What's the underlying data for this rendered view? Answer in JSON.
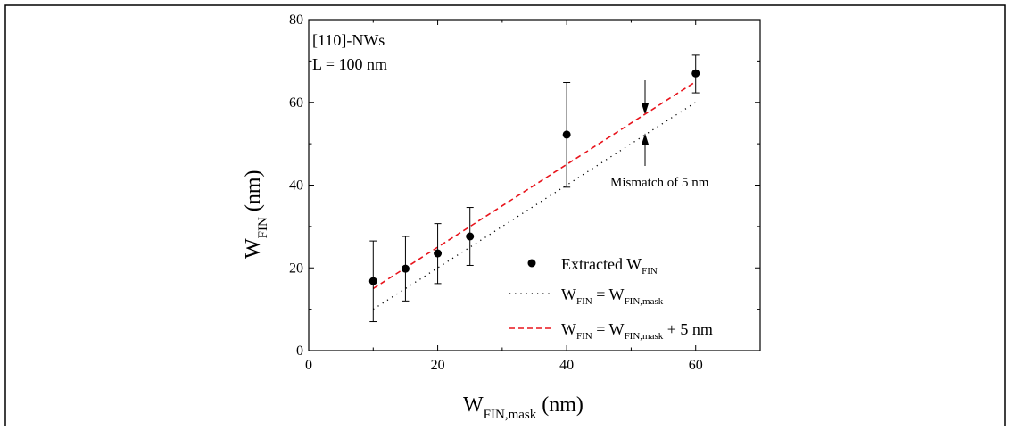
{
  "chart_data": {
    "type": "scatter",
    "xlim": [
      0,
      70
    ],
    "ylim": [
      0,
      80
    ],
    "x_ticks": [
      "0",
      "20",
      "40",
      "60"
    ],
    "y_ticks": [
      "0",
      "20",
      "40",
      "60",
      "80"
    ],
    "xlabel": {
      "main": "W",
      "sub": "FIN,mask",
      "unit": " (nm)"
    },
    "ylabel": {
      "main": "W",
      "sub": "FIN",
      "unit": " (nm)"
    },
    "annotations": {
      "line1": "[110]-NWs",
      "line2": "L = 100 nm",
      "mismatch": "Mismatch of 5 nm"
    },
    "legend_position": "lower-right",
    "grid": false,
    "series": [
      {
        "name": "Extracted W_FIN",
        "kind": "points-with-errorbars",
        "color": "#000000",
        "x": [
          10,
          15,
          20,
          25,
          40,
          60
        ],
        "y": [
          16.8,
          19.8,
          23.5,
          27.6,
          52.2,
          67.0
        ],
        "y_err_low": [
          7.0,
          12.0,
          16.2,
          20.6,
          39.5,
          62.3
        ],
        "y_err_high": [
          26.5,
          27.6,
          30.7,
          34.6,
          64.8,
          71.4
        ]
      },
      {
        "name": "W_FIN = W_FIN,mask",
        "kind": "dotted-line",
        "color": "#000000",
        "x": [
          10,
          60
        ],
        "y": [
          10,
          60
        ]
      },
      {
        "name": "W_FIN = W_FIN,mask + 5 nm",
        "kind": "dashed-line",
        "color": "#e8141c",
        "x": [
          10,
          60
        ],
        "y": [
          15,
          65
        ]
      }
    ],
    "legend": [
      {
        "pre": "Extracted W",
        "sub": "FIN",
        "post": ""
      },
      {
        "pre": "W",
        "sub": "FIN",
        "mid": " = W",
        "sub2": "FIN,mask",
        "post": ""
      },
      {
        "pre": "W",
        "sub": "FIN",
        "mid": " = W",
        "sub2": "FIN,mask",
        "post": " + 5 nm"
      }
    ]
  }
}
